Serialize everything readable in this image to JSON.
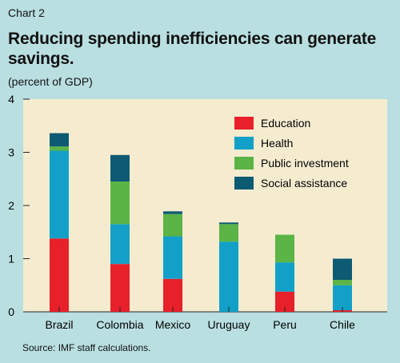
{
  "header": {
    "chart_label": "Chart 2",
    "title": "Reducing spending inefficiencies can generate savings.",
    "subtitle": "(percent of GDP)"
  },
  "footer": {
    "source": "Source: IMF staff calculations."
  },
  "colors": {
    "background": "#b9dfe1",
    "plot_area": "#f5ecd0",
    "Education": "#e8202a",
    "Health": "#12a0c8",
    "Public investment": "#5ab446",
    "Social assistance": "#0d5a73"
  },
  "chart_data": {
    "type": "bar",
    "stacked": true,
    "categories": [
      "Brazil",
      "Colombia",
      "Mexico",
      "Uruguay",
      "Peru",
      "Chile"
    ],
    "series": [
      {
        "name": "Education",
        "values": [
          1.38,
          0.9,
          0.62,
          0.0,
          0.38,
          0.03
        ]
      },
      {
        "name": "Health",
        "values": [
          1.65,
          0.75,
          0.8,
          1.32,
          0.55,
          0.47
        ]
      },
      {
        "name": "Public investment",
        "values": [
          0.08,
          0.8,
          0.42,
          0.33,
          0.52,
          0.1
        ]
      },
      {
        "name": "Social assistance",
        "values": [
          0.25,
          0.5,
          0.05,
          0.03,
          0.0,
          0.4
        ]
      }
    ],
    "ylim": [
      0,
      4
    ],
    "yticks": [
      "0",
      "1",
      "2",
      "3",
      "4"
    ],
    "grid": false,
    "legend_position": "top-right",
    "title": "Reducing spending inefficiencies can generate savings.",
    "ylabel": "(percent of GDP)"
  }
}
